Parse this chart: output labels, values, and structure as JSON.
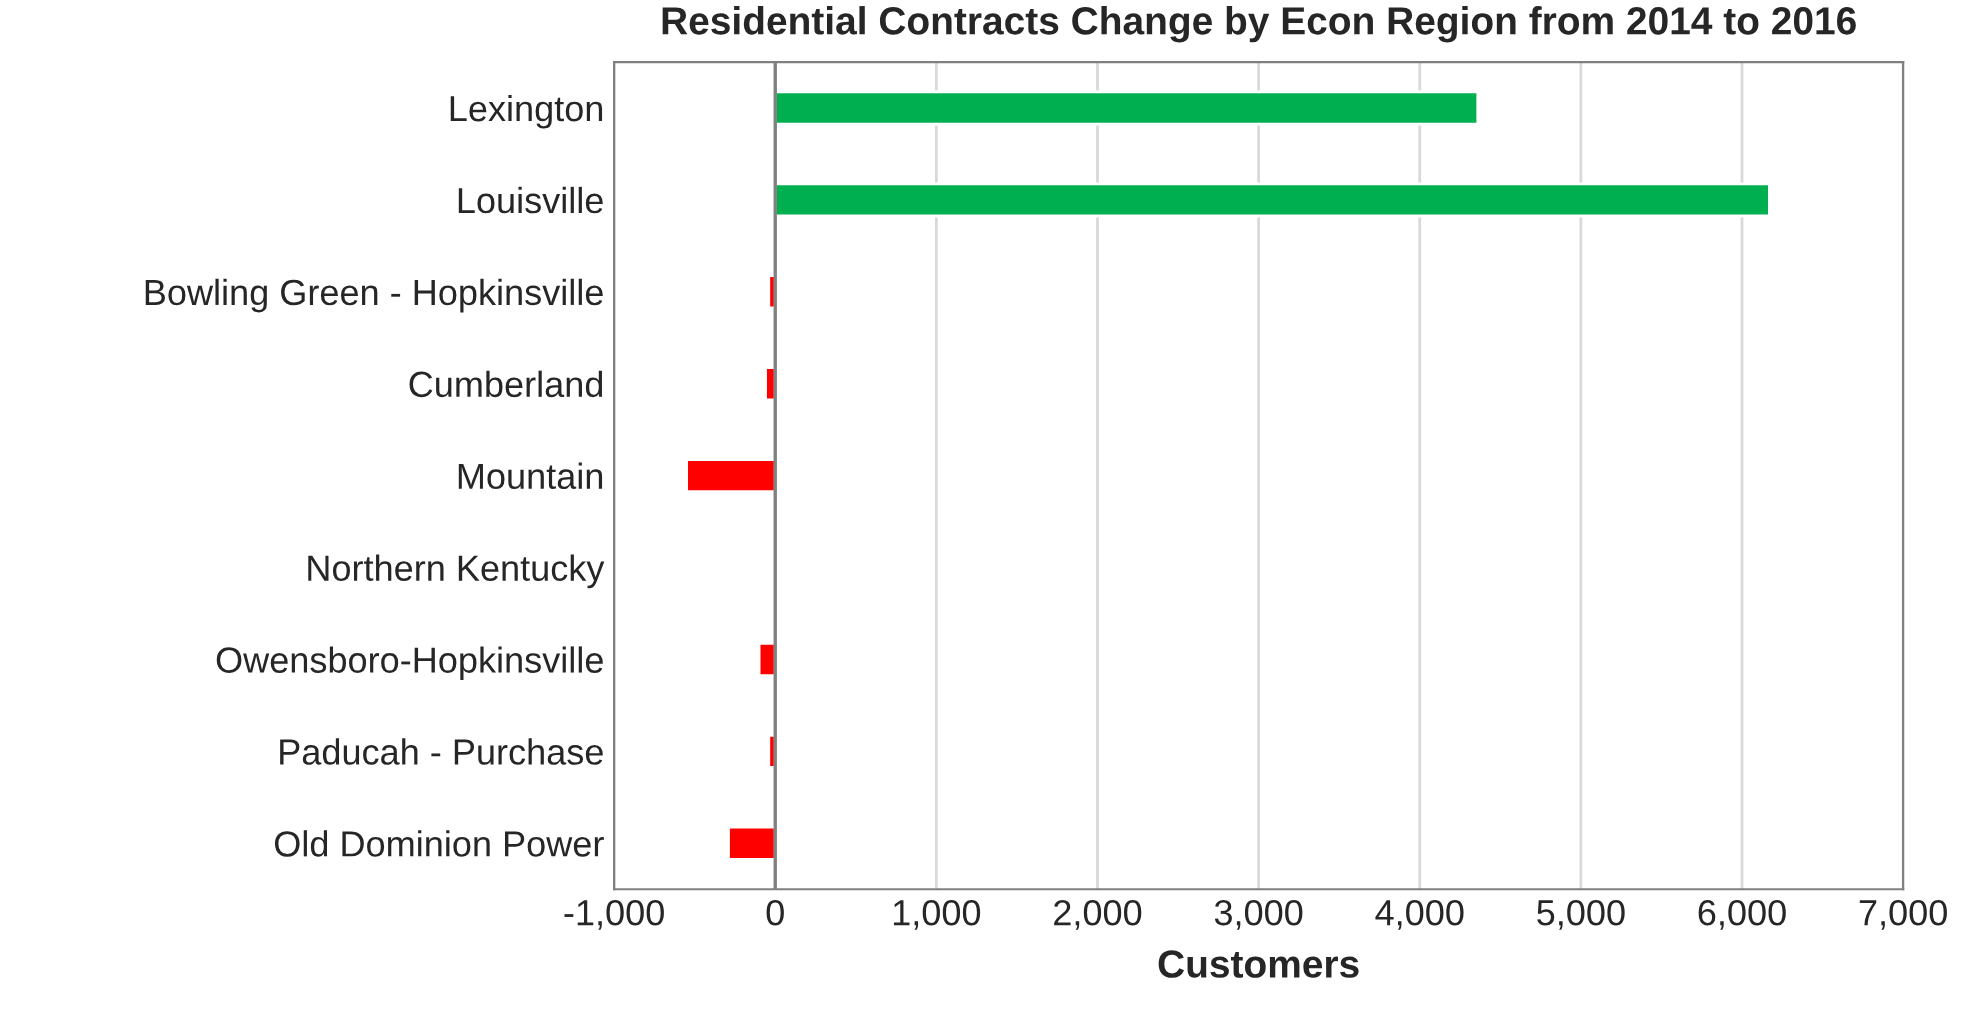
{
  "chart_data": {
    "type": "bar",
    "orientation": "horizontal",
    "title": "Residential Contracts Change by Econ Region from 2014 to 2016",
    "xlabel": "Customers",
    "categories": [
      "Lexington",
      "Louisville",
      "Bowling Green - Hopkinsville",
      "Cumberland",
      "Mountain",
      "Northern Kentucky",
      "Owensboro-Hopkinsville",
      "Paducah - Purchase",
      "Old Dominion Power"
    ],
    "values": [
      4360,
      6170,
      -40,
      -60,
      -550,
      null,
      -100,
      -40,
      -290
    ],
    "colors": [
      "#00b050",
      "#00b050",
      "#ff0000",
      "#ff0000",
      "#ff0000",
      null,
      "#ff0000",
      "#ff0000",
      "#ff0000"
    ],
    "xlim": [
      -1000,
      7000
    ],
    "xticks": [
      {
        "value": -1000,
        "label": "-1,000"
      },
      0,
      {
        "value": 1000,
        "label": "1,000"
      },
      {
        "value": 2000,
        "label": "2,000"
      },
      {
        "value": 3000,
        "label": "3,000"
      },
      {
        "value": 4000,
        "label": "4,000"
      },
      {
        "value": 5000,
        "label": "5,000"
      },
      {
        "value": 6000,
        "label": "6,000"
      },
      {
        "value": 7000,
        "label": "7,000"
      }
    ],
    "grid": "x"
  }
}
